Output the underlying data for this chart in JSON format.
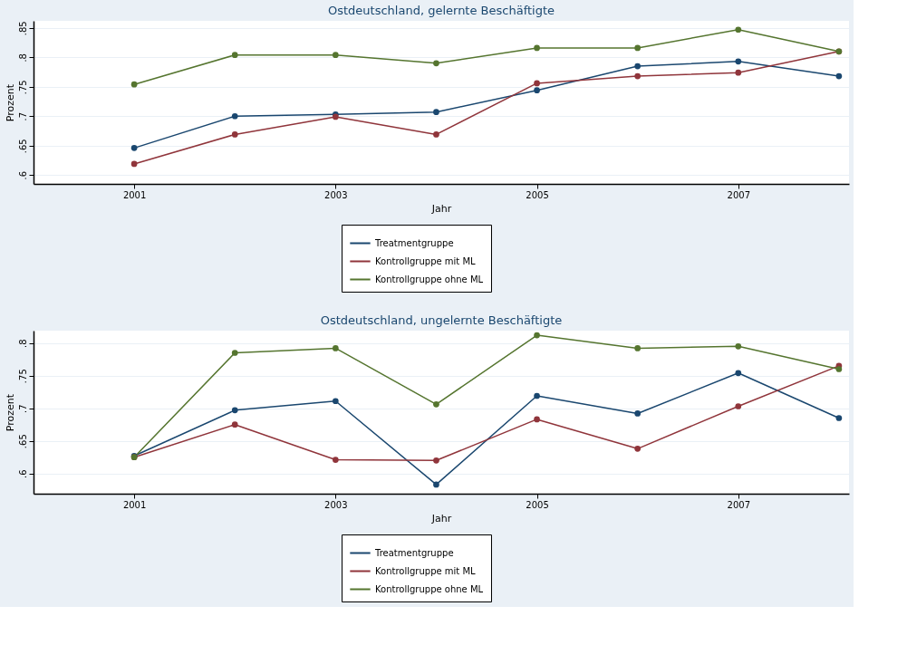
{
  "chart_data": [
    {
      "type": "line",
      "title": "Ostdeutschland, gelernte Beschäftigte",
      "xlabel": "Jahr",
      "ylabel": "Prozent",
      "x": [
        2001,
        2002,
        2003,
        2004,
        2005,
        2006,
        2007,
        2008
      ],
      "xlim": [
        2000,
        2008.1
      ],
      "xticks": [
        2001,
        2003,
        2005,
        2007
      ],
      "ylim": [
        0.585,
        0.862
      ],
      "yticks": [
        {
          "value": 0.6,
          "label": ".6"
        },
        {
          "value": 0.65,
          "label": ".65"
        },
        {
          "value": 0.7,
          "label": ".7"
        },
        {
          "value": 0.75,
          "label": ".75"
        },
        {
          "value": 0.8,
          "label": ".8"
        },
        {
          "value": 0.85,
          "label": ".85"
        }
      ],
      "grid": "y",
      "legend": "bottom",
      "marker": "circle",
      "series": [
        {
          "name": "Treatmentgruppe",
          "color": "#1a476f",
          "values": [
            0.646,
            0.7,
            0.703,
            0.707,
            0.744,
            0.785,
            0.793,
            0.768
          ]
        },
        {
          "name": "Kontrollgruppe mit ML",
          "color": "#90353b",
          "values": [
            0.619,
            0.669,
            0.699,
            0.669,
            0.756,
            0.768,
            0.774,
            0.81
          ]
        },
        {
          "name": "Kontrollgruppe ohne ML",
          "color": "#55752f",
          "values": [
            0.754,
            0.804,
            0.804,
            0.79,
            0.816,
            0.816,
            0.847,
            0.81
          ]
        }
      ]
    },
    {
      "type": "line",
      "title": "Ostdeutschland, ungelernte Beschäftigte",
      "xlabel": "Jahr",
      "ylabel": "Prozent",
      "x": [
        2001,
        2002,
        2003,
        2004,
        2005,
        2006,
        2007,
        2008
      ],
      "xlim": [
        2000,
        2008.1
      ],
      "xticks": [
        2001,
        2003,
        2005,
        2007
      ],
      "ylim": [
        0.569,
        0.819
      ],
      "yticks": [
        {
          "value": 0.6,
          "label": ".6"
        },
        {
          "value": 0.65,
          "label": ".65"
        },
        {
          "value": 0.7,
          "label": ".7"
        },
        {
          "value": 0.75,
          "label": ".75"
        },
        {
          "value": 0.8,
          "label": ".8"
        }
      ],
      "grid": "y",
      "legend": "bottom",
      "marker": "circle",
      "series": [
        {
          "name": "Treatmentgruppe",
          "color": "#1a476f",
          "values": [
            0.627,
            0.697,
            0.711,
            0.583,
            0.719,
            0.692,
            0.754,
            0.685
          ]
        },
        {
          "name": "Kontrollgruppe mit ML",
          "color": "#90353b",
          "values": [
            0.625,
            0.675,
            0.621,
            0.62,
            0.683,
            0.638,
            0.703,
            0.765
          ]
        },
        {
          "name": "Kontrollgruppe ohne ML",
          "color": "#55752f",
          "values": [
            0.625,
            0.785,
            0.792,
            0.706,
            0.812,
            0.792,
            0.795,
            0.76
          ]
        }
      ]
    }
  ]
}
